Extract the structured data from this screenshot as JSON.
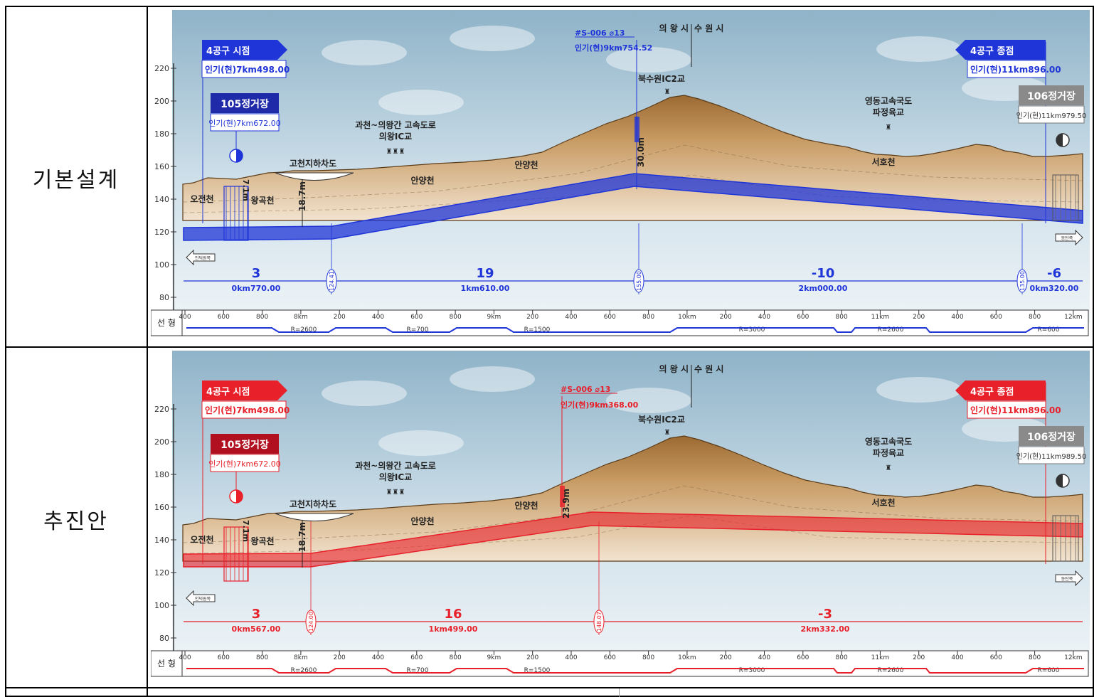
{
  "rows": [
    {
      "label": "기본설계",
      "theme": "#1f35d8",
      "start": {
        "title": "4공구 시점",
        "sta": "인기(현)7km498.00"
      },
      "end": {
        "title": "4공구 종점",
        "sta": "인기(현)11km896.00"
      },
      "station105": {
        "title": "105정거장",
        "sta": "인기(현)7km672.00"
      },
      "station106": {
        "title": "106정거장",
        "sta": "인기(현)11km979.50"
      },
      "shaft": {
        "title": "#S-006 ⌀13",
        "sta": "인기(현)9km754.52"
      },
      "depth_a": "7.1m",
      "depth_b": "18.7m",
      "depth_c": "30.0m",
      "grades": [
        {
          "val": "3",
          "sta": "0km770.00"
        },
        {
          "val": "19",
          "sta": "1km610.00"
        },
        {
          "val": "-10",
          "sta": "2km000.00"
        },
        {
          "val": "-6",
          "sta": "0km320.00"
        }
      ],
      "vips": [
        "124.41",
        "155.00",
        "135.00"
      ]
    },
    {
      "label": "추진안",
      "theme": "#e8202a",
      "start": {
        "title": "4공구 시점",
        "sta": "인기(현)7km498.00"
      },
      "end": {
        "title": "4공구 종점",
        "sta": "인기(현)11km896.00"
      },
      "station105": {
        "title": "105정거장",
        "sta": "인기(현)7km672.00"
      },
      "station106": {
        "title": "106정거장",
        "sta": "인기(현)11km989.50"
      },
      "shaft": {
        "title": "#S-006 ⌀13",
        "sta": "인기(현)9km368.00"
      },
      "depth_a": "7.1m",
      "depth_b": "18.7m",
      "depth_c": "23.9m",
      "grades": [
        {
          "val": "3",
          "sta": "0km567.00"
        },
        {
          "val": "16",
          "sta": "1km499.00"
        },
        {
          "val": "-3",
          "sta": "2km332.00"
        }
      ],
      "vips": [
        "124.00",
        "148.07"
      ]
    }
  ],
  "common": {
    "yticks": [
      "220",
      "200",
      "180",
      "160",
      "140",
      "120",
      "100",
      "80"
    ],
    "xticks": [
      "400",
      "600",
      "800",
      "8km",
      "200",
      "400",
      "600",
      "800",
      "9km",
      "200",
      "400",
      "600",
      "800",
      "10km",
      "200",
      "400",
      "600",
      "800",
      "11km",
      "200",
      "400",
      "600",
      "800",
      "12km"
    ],
    "alignment_label": "선 형",
    "radii": [
      "R=2600",
      "R=700",
      "R=1500",
      "R=3000",
      "R=2600",
      "R=600"
    ],
    "city_left": "의 왕 시",
    "city_right": "수 원 시",
    "labels": {
      "ojeon": "오전천",
      "wanggok": "왕곡천",
      "gocheon": "고천지하차도",
      "expressway_1": "과천~의왕간 고속도로",
      "expressway_2": "의왕IC교",
      "anyang1": "안양천",
      "anyang2": "안양천",
      "buksuwon": "북수원IC2교",
      "yeongdong_1": "영동고속국도",
      "yeongdong_2": "파정육교",
      "seoho": "서호천",
      "dir_left": "인덕원쪽",
      "dir_right": "동탄쪽"
    }
  }
}
